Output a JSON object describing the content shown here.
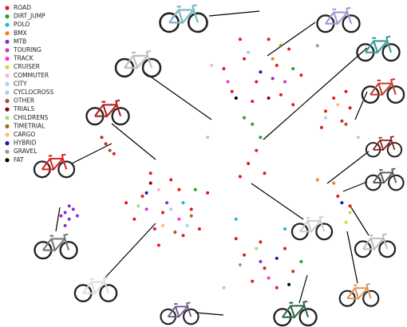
{
  "chart_data": {
    "type": "scatter",
    "xlim": [
      0,
      100
    ],
    "ylim": [
      0,
      100
    ],
    "legend": "upper left",
    "series": [
      {
        "name": "ROAD",
        "color": "#e31a1c",
        "x": [
          60,
          63,
          68,
          71,
          57,
          66,
          74,
          62,
          55,
          69,
          59,
          72,
          80,
          84,
          82,
          86,
          79,
          85,
          35,
          40,
          44,
          38,
          47,
          42,
          33,
          49,
          37,
          45,
          31,
          51,
          39,
          60,
          65,
          70,
          62,
          68,
          58,
          72,
          64,
          61,
          65,
          63,
          59,
          26,
          28,
          25,
          83,
          86
        ],
        "y": [
          82,
          75,
          80,
          85,
          72,
          88,
          77,
          69,
          79,
          71,
          88,
          68,
          66,
          63,
          70,
          67,
          61,
          72,
          40,
          35,
          42,
          30,
          36,
          45,
          33,
          30,
          47,
          28,
          38,
          41,
          25,
          22,
          18,
          24,
          14,
          12,
          27,
          17,
          26,
          50,
          47,
          54,
          46,
          56,
          53,
          58,
          40,
          37
        ]
      },
      {
        "name": "DIRT_JUMP",
        "color": "#2ca02c",
        "x": [
          62,
          64,
          60,
          72,
          48,
          74
        ],
        "y": [
          62,
          58,
          64,
          79,
          42,
          20
        ]
      },
      {
        "name": "POLO",
        "color": "#17becf",
        "x": [
          45,
          58,
          70
        ],
        "y": [
          38,
          33,
          30
        ]
      },
      {
        "name": "BMX",
        "color": "#ff7f0e",
        "x": [
          78,
          82,
          67
        ],
        "y": [
          45,
          44,
          82
        ]
      },
      {
        "name": "MTB",
        "color": "#8e2bd6",
        "x": [
          16,
          17,
          18,
          15,
          17,
          19,
          16,
          67,
          64,
          41
        ],
        "y": [
          35,
          33,
          36,
          34,
          37,
          34,
          31,
          76,
          20,
          38
        ]
      },
      {
        "name": "TOURING",
        "color": "#c43fbf",
        "x": [
          70,
          36
        ],
        "y": [
          75,
          36
        ]
      },
      {
        "name": "TRACK",
        "color": "#ff33cc",
        "x": [
          56,
          44,
          66
        ],
        "y": [
          75,
          33,
          15
        ]
      },
      {
        "name": "CRUISER",
        "color": "#c8dc3c",
        "x": [
          86,
          85
        ],
        "y": [
          35,
          32
        ]
      },
      {
        "name": "COMMUTER",
        "color": "#f7b6d2",
        "x": [
          52,
          39
        ],
        "y": [
          80,
          42
        ]
      },
      {
        "name": "CITY",
        "color": "#9edae5",
        "x": [
          80,
          46,
          88
        ],
        "y": [
          64,
          31,
          58
        ]
      },
      {
        "name": "CYCLOCROSS",
        "color": "#aec7e8",
        "x": [
          42,
          61,
          51,
          55
        ],
        "y": [
          36,
          84,
          58,
          12
        ]
      },
      {
        "name": "OTHER",
        "color": "#a0522d",
        "x": [
          27,
          85,
          43
        ],
        "y": [
          54,
          62,
          29
        ]
      },
      {
        "name": "TRIALS",
        "color": "#8b0000",
        "x": [
          66,
          37
        ],
        "y": [
          70,
          44
        ]
      },
      {
        "name": "CHILDRENS",
        "color": "#98df8a",
        "x": [
          63,
          34
        ],
        "y": [
          24,
          37
        ]
      },
      {
        "name": "TIMETRIAL",
        "color": "#8c7a1a",
        "x": [
          69,
          47
        ],
        "y": [
          86,
          34
        ]
      },
      {
        "name": "CARGO",
        "color": "#ffbb78",
        "x": [
          83,
          40
        ],
        "y": [
          68,
          31
        ]
      },
      {
        "name": "HYBRID",
        "color": "#1a1aa6",
        "x": [
          64,
          68,
          36,
          84
        ],
        "y": [
          78,
          21,
          41,
          38
        ]
      },
      {
        "name": "GRAVEL",
        "color": "#999999",
        "x": [
          78,
          59
        ],
        "y": [
          86,
          19
        ]
      },
      {
        "name": "FAT",
        "color": "#000000",
        "x": [
          58,
          71
        ],
        "y": [
          70,
          13
        ]
      }
    ]
  }
}
